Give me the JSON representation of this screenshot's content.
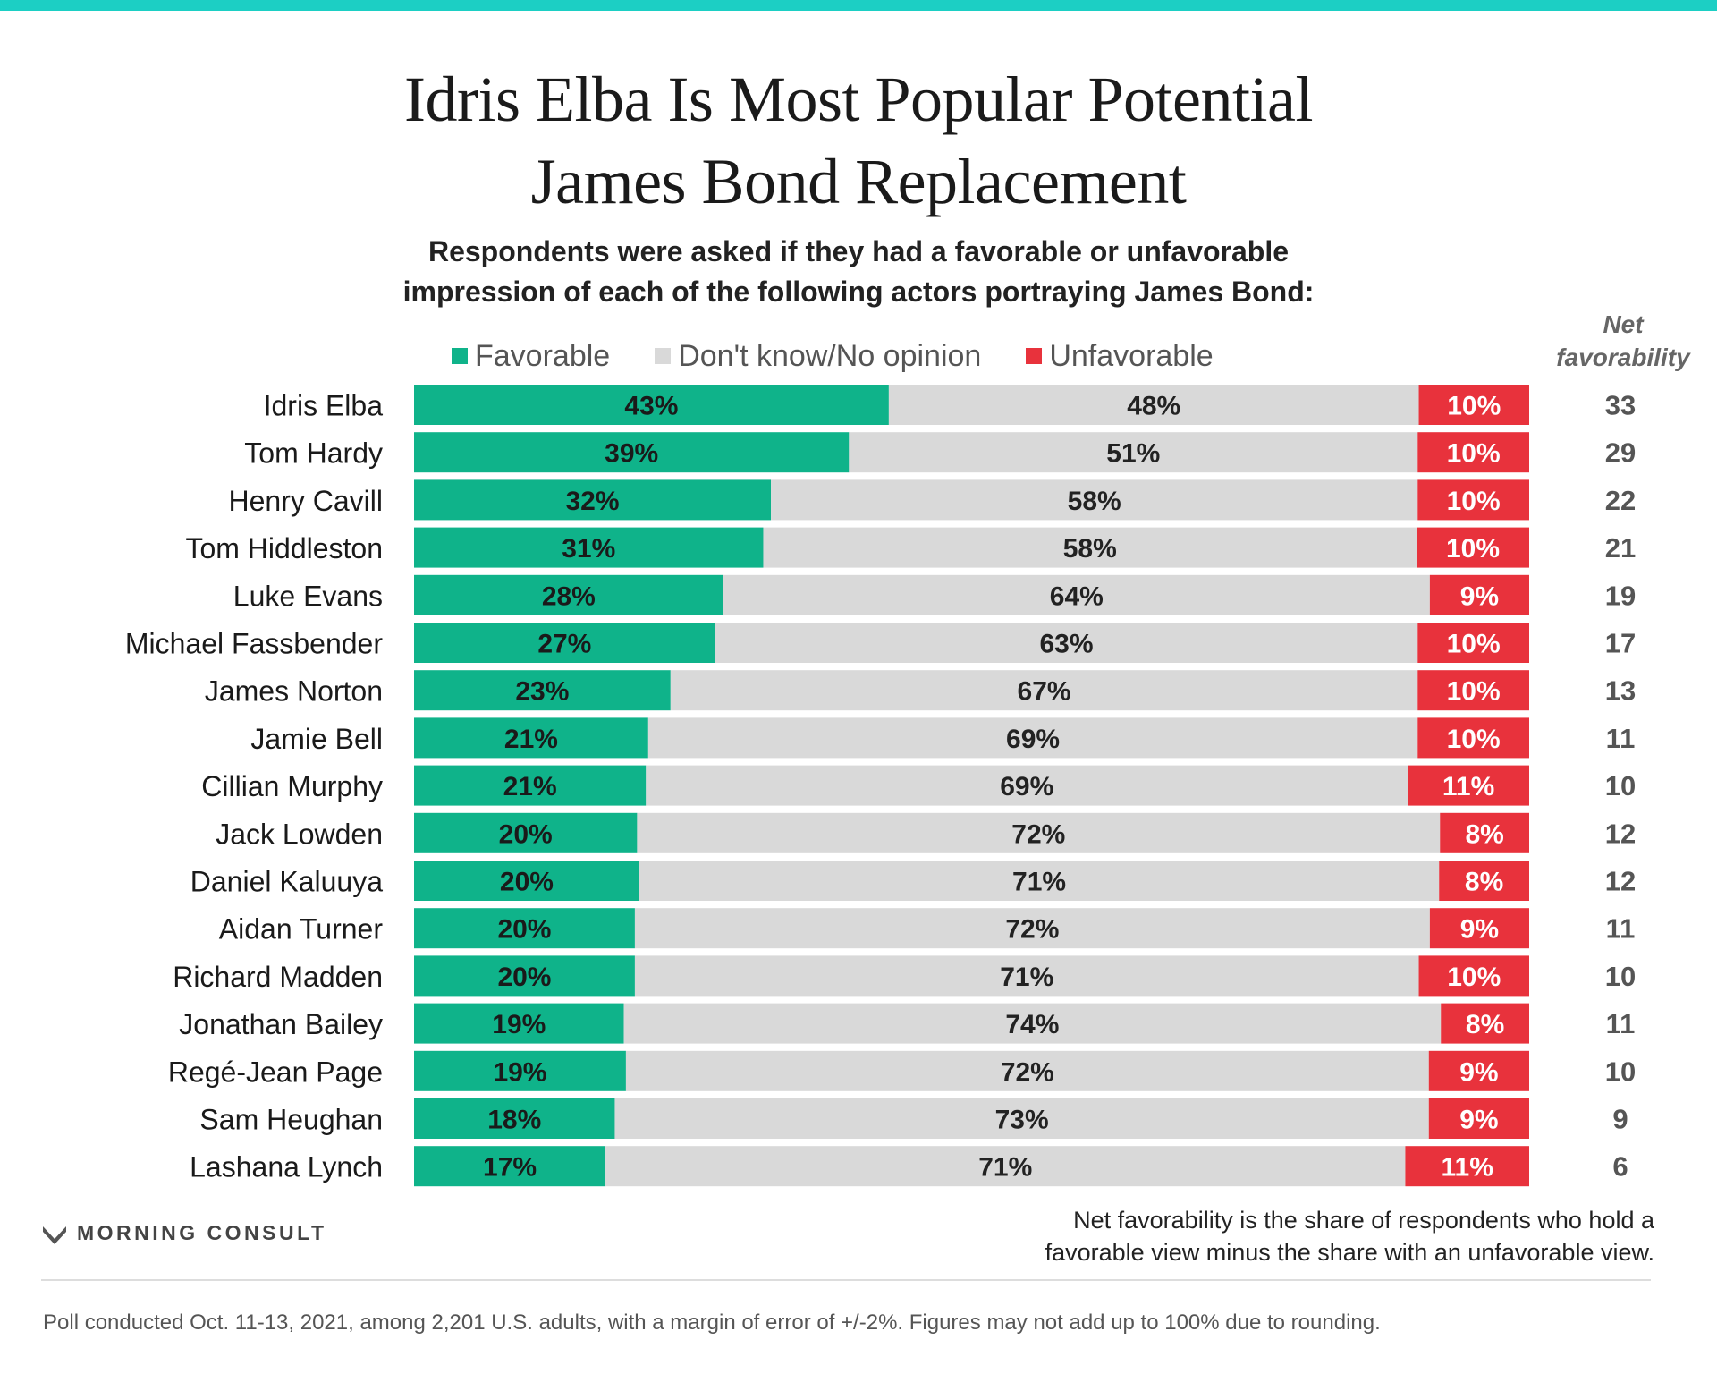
{
  "header": {
    "title_line1": "Idris Elba Is Most Popular Potential",
    "title_line2": "James Bond Replacement",
    "subtitle_line1": "Respondents were asked if they had a favorable or unfavorable",
    "subtitle_line2": "impression of each of the following actors portraying James Bond:"
  },
  "legend": {
    "favorable": "Favorable",
    "no_opinion": "Don't know/No opinion",
    "unfavorable": "Unfavorable"
  },
  "net_header": {
    "line1": "Net",
    "line2": "favorability"
  },
  "colors": {
    "accent_top": "#1ccfc4",
    "favorable": "#0fb38a",
    "no_opinion": "#d9d9d9",
    "unfavorable": "#e8323c",
    "net_text": "#555555"
  },
  "chart_data": {
    "type": "bar",
    "orientation": "horizontal",
    "stacked": true,
    "legend_position": "top",
    "categories": [
      "Idris Elba",
      "Tom Hardy",
      "Henry Cavill",
      "Tom Hiddleston",
      "Luke Evans",
      "Michael Fassbender",
      "James Norton",
      "Jamie Bell",
      "Cillian Murphy",
      "Jack Lowden",
      "Daniel Kaluuya",
      "Aidan Turner",
      "Richard Madden",
      "Jonathan Bailey",
      "Regé-Jean Page",
      "Sam Heughan",
      "Lashana Lynch"
    ],
    "series": [
      {
        "name": "Favorable",
        "values": [
          43,
          39,
          32,
          31,
          28,
          27,
          23,
          21,
          21,
          20,
          20,
          20,
          20,
          19,
          19,
          18,
          17
        ]
      },
      {
        "name": "Don't know/No opinion",
        "values": [
          48,
          51,
          58,
          58,
          64,
          63,
          67,
          69,
          69,
          72,
          71,
          72,
          71,
          74,
          72,
          73,
          71
        ]
      },
      {
        "name": "Unfavorable",
        "values": [
          10,
          10,
          10,
          10,
          9,
          10,
          10,
          10,
          11,
          8,
          8,
          9,
          10,
          8,
          9,
          9,
          11
        ]
      }
    ],
    "net_favorability": [
      33,
      29,
      22,
      21,
      19,
      17,
      13,
      11,
      10,
      12,
      12,
      11,
      10,
      11,
      10,
      9,
      6
    ],
    "value_suffix": "%",
    "xlim": [
      0,
      100
    ]
  },
  "footer": {
    "note_line1": "Net favorability is the share of respondents who hold a",
    "note_line2": "favorable view minus the share with an unfavorable view.",
    "brand": "MORNING CONSULT",
    "source": "Poll conducted Oct. 11-13, 2021, among 2,201 U.S. adults, with a margin of error of +/-2%. Figures may not add up to 100% due to rounding."
  }
}
